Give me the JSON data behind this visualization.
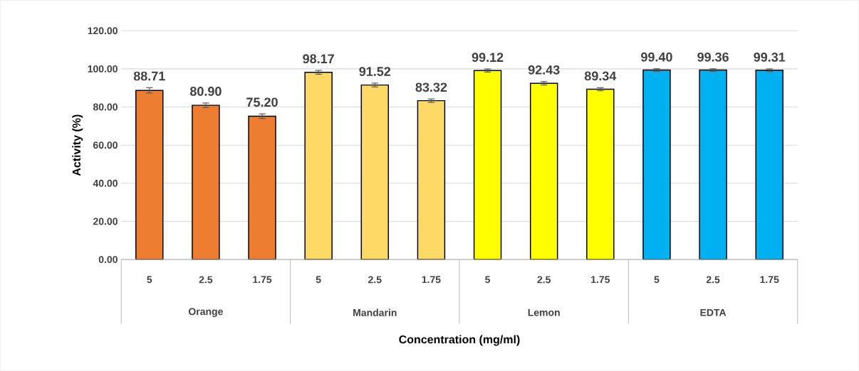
{
  "chart_data": {
    "type": "bar",
    "xlabel": "Concentration (mg/ml)",
    "ylabel": "Activity (%)",
    "categories": [
      "5",
      "2.5",
      "1.75",
      "5",
      "2.5",
      "1.75",
      "5",
      "2.5",
      "1.75",
      "5",
      "2.5",
      "1.75"
    ],
    "values": [
      88.71,
      80.9,
      75.2,
      98.17,
      91.52,
      83.32,
      99.12,
      92.43,
      89.34,
      99.4,
      99.36,
      99.31
    ],
    "value_labels": [
      "88.71",
      "80.90",
      "75.20",
      "98.17",
      "91.52",
      "83.32",
      "99.12",
      "92.43",
      "89.34",
      "99.40",
      "99.36",
      "99.31"
    ],
    "errors": [
      1.4,
      1.2,
      1.2,
      1.0,
      1.0,
      0.9,
      0.8,
      0.9,
      0.8,
      0.7,
      0.7,
      0.7
    ],
    "colors": [
      "#ed7d31",
      "#ed7d31",
      "#ed7d31",
      "#ffd966",
      "#ffd966",
      "#ffd966",
      "#ffff00",
      "#ffff00",
      "#ffff00",
      "#00b0f0",
      "#00b0f0",
      "#00b0f0"
    ],
    "annotations": [
      "Orange",
      "Mandarin",
      "Lemon",
      "EDTA"
    ],
    "ylim": [
      0,
      120
    ],
    "yticks": [
      {
        "value": 0,
        "label": "0.00"
      },
      {
        "value": 20,
        "label": "20.00"
      },
      {
        "value": 40,
        "label": "40.00"
      },
      {
        "value": 60,
        "label": "60.00"
      },
      {
        "value": 80,
        "label": "80.00"
      },
      {
        "value": 100,
        "label": "100.00"
      },
      {
        "value": 120,
        "label": "120.00"
      }
    ],
    "grid": "y"
  }
}
